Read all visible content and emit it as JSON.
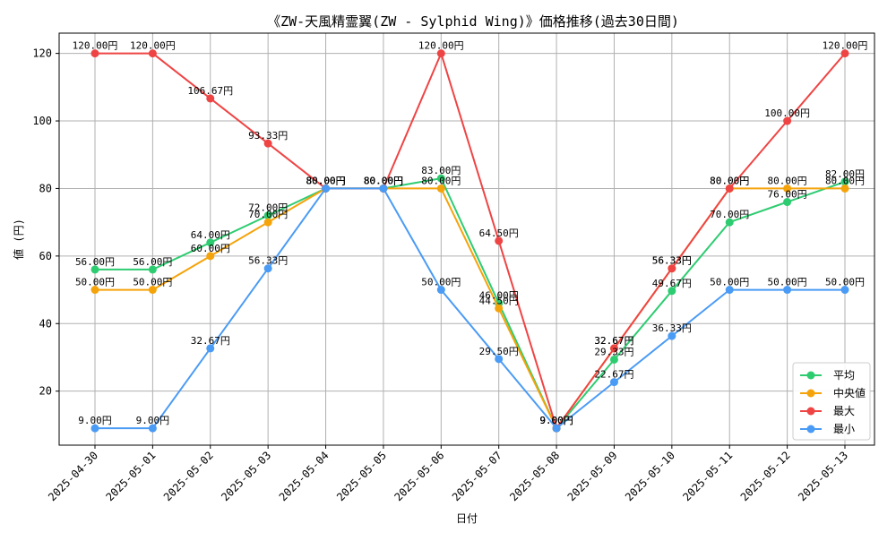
{
  "chart_data": {
    "type": "line",
    "title": "《ZW-天風精霊翼(ZW - Sylphid Wing)》価格推移(過去30日間)",
    "xlabel": "日付",
    "ylabel": "値 (円)",
    "ylim": [
      4,
      126
    ],
    "yticks": [
      20,
      40,
      60,
      80,
      100,
      120
    ],
    "grid": true,
    "legend_position": "bottom-right",
    "categories": [
      "2025-04-30",
      "2025-05-01",
      "2025-05-02",
      "2025-05-03",
      "2025-05-04",
      "2025-05-05",
      "2025-05-06",
      "2025-05-07",
      "2025-05-08",
      "2025-05-09",
      "2025-05-10",
      "2025-05-11",
      "2025-05-12",
      "2025-05-13"
    ],
    "series": [
      {
        "name": "平均",
        "color": "#2ecc71",
        "values": [
          56.0,
          56.0,
          64.0,
          72.0,
          80.0,
          80.0,
          83.0,
          46.0,
          9.0,
          29.33,
          49.67,
          70.0,
          76.0,
          82.0
        ],
        "labels": [
          "56.00円",
          "56.00円",
          "64.00円",
          "72.00円",
          "80.00円",
          "80.00円",
          "83.00円",
          "46.00円",
          "9.00円",
          "29.33円",
          "49.67円",
          "70.00円",
          "76.00円",
          "82.00円"
        ]
      },
      {
        "name": "中央値",
        "color": "#f5a30a",
        "values": [
          50.0,
          50.0,
          60.0,
          70.0,
          80.0,
          80.0,
          80.0,
          44.5,
          9.0,
          32.67,
          56.33,
          80.0,
          80.0,
          80.0
        ],
        "labels": [
          "50.00円",
          "50.00円",
          "60.00円",
          "70.00円",
          "80.00円",
          "80.00円",
          "80.00円",
          "44.50円",
          "9.00円",
          "32.67円",
          "56.33円",
          "80.00円",
          "80.00円",
          "80.00円"
        ]
      },
      {
        "name": "最大",
        "color": "#ef4444",
        "values": [
          120.0,
          120.0,
          106.67,
          93.33,
          80.0,
          80.0,
          120.0,
          64.5,
          9.0,
          32.67,
          56.33,
          80.0,
          100.0,
          120.0
        ],
        "labels": [
          "120.00円",
          "120.00円",
          "106.67円",
          "93.33円",
          "80.00円",
          "80.00円",
          "120.00円",
          "64.50円",
          "9.00円",
          "32.67円",
          "56.33円",
          "80.00円",
          "100.00円",
          "120.00円"
        ]
      },
      {
        "name": "最小",
        "color": "#4a9bf5",
        "values": [
          9.0,
          9.0,
          32.67,
          56.33,
          80.0,
          80.0,
          50.0,
          29.5,
          9.0,
          22.67,
          36.33,
          50.0,
          50.0,
          50.0
        ],
        "labels": [
          "9.00円",
          "9.00円",
          "32.67円",
          "56.33円",
          "80.00円",
          "80.00円",
          "50.00円",
          "29.50円",
          "9.00円",
          "22.67円",
          "36.33円",
          "50.00円",
          "50.00円",
          "50.00円"
        ]
      }
    ]
  }
}
